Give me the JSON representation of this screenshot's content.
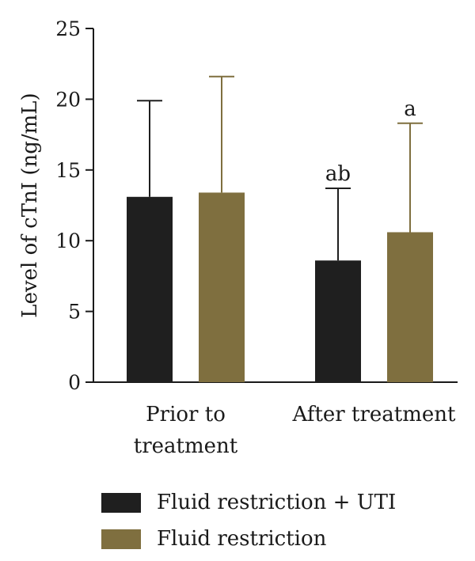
{
  "chart_data": {
    "type": "bar",
    "ylabel": "Level of cTnI (ng/mL)",
    "ylim": [
      0,
      25
    ],
    "yticks": [
      0,
      5,
      10,
      15,
      20,
      25
    ],
    "categories": [
      [
        "Prior to",
        "treatment"
      ],
      [
        "After treatment"
      ]
    ],
    "series": [
      {
        "name": "Fluid restriction + UTI",
        "color": "#1f1f1f",
        "values": [
          13.1,
          8.6
        ],
        "error_upper": [
          19.9,
          13.7
        ],
        "annotations": [
          "",
          "ab"
        ]
      },
      {
        "name": "Fluid restriction",
        "color": "#7f6f3f",
        "values": [
          13.4,
          10.6
        ],
        "error_upper": [
          21.6,
          18.3
        ],
        "annotations": [
          "",
          "a"
        ]
      }
    ],
    "grid": false,
    "legend_position": "bottom"
  }
}
